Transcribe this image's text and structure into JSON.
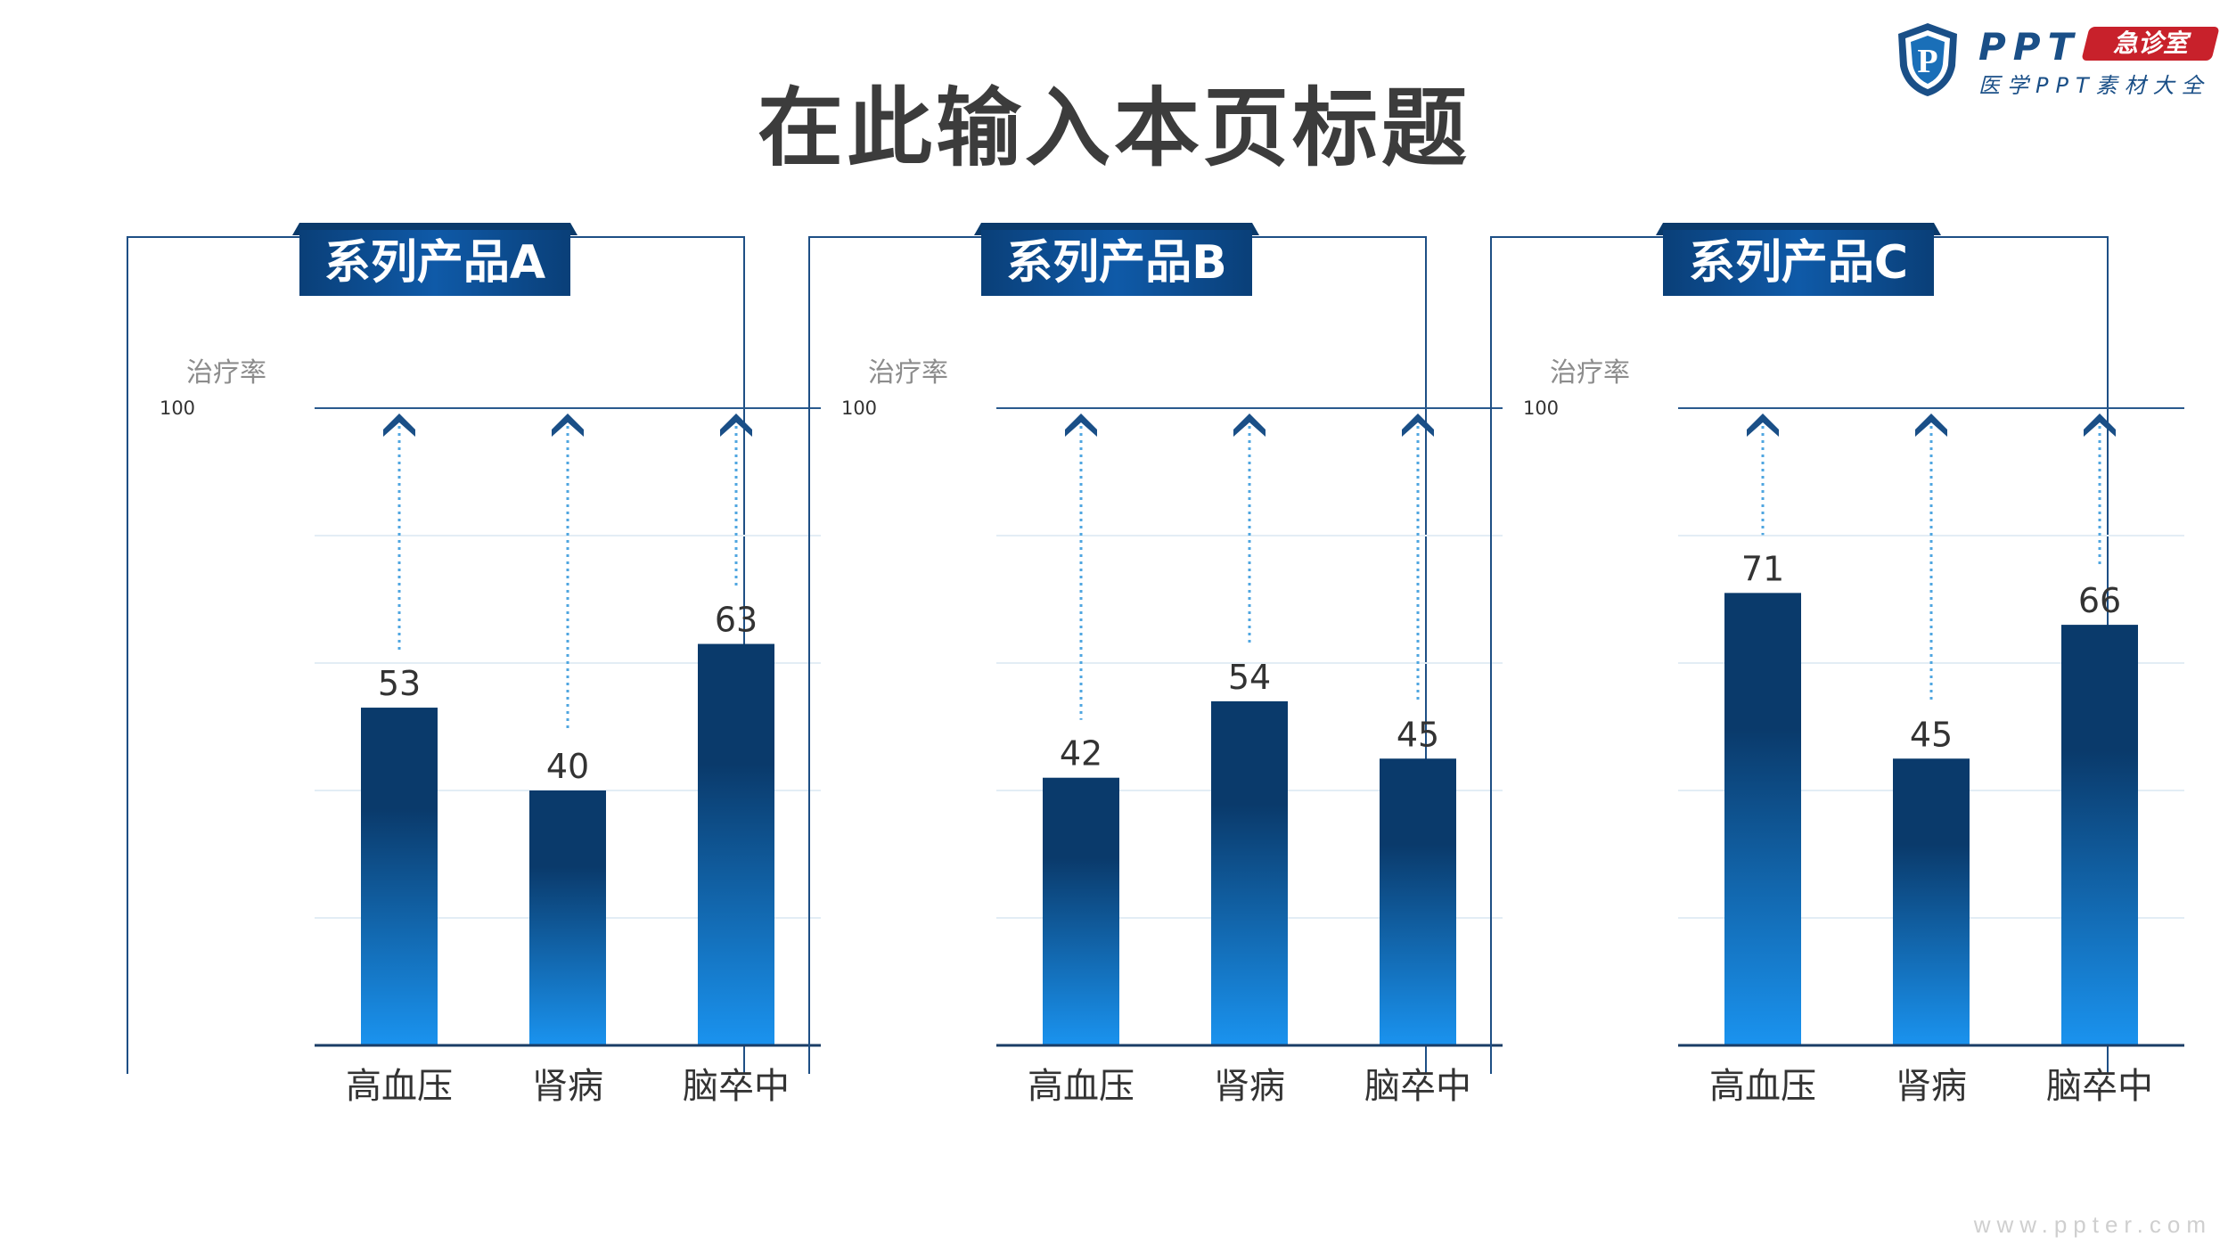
{
  "page": {
    "title": "在此输入本页标题",
    "watermark": "www.ppter.com"
  },
  "logo": {
    "mark_letter": "P",
    "name": "PPT",
    "badge": "急诊室",
    "subtitle": "医学PPT素材大全"
  },
  "colors": {
    "bar_top": "#0a3a6b",
    "bar_bottom": "#1a93ef",
    "tab": "#0d4d8f",
    "frame": "#1e4f85",
    "arrow": "#1a4f87",
    "leader": "#4fa6e0"
  },
  "chart_data": [
    {
      "type": "bar",
      "title": "系列产品A",
      "ylabel": "治疗率",
      "yticks": [
        100
      ],
      "ylim": [
        0,
        100
      ],
      "grid": true,
      "categories": [
        "高血压",
        "肾病",
        "脑卒中"
      ],
      "values": [
        53,
        40,
        63
      ]
    },
    {
      "type": "bar",
      "title": "系列产品B",
      "ylabel": "治疗率",
      "yticks": [
        100
      ],
      "ylim": [
        0,
        100
      ],
      "grid": true,
      "categories": [
        "高血压",
        "肾病",
        "脑卒中"
      ],
      "values": [
        42,
        54,
        45
      ]
    },
    {
      "type": "bar",
      "title": "系列产品C",
      "ylabel": "治疗率",
      "yticks": [
        100
      ],
      "ylim": [
        0,
        100
      ],
      "grid": true,
      "categories": [
        "高血压",
        "肾病",
        "脑卒中"
      ],
      "values": [
        71,
        45,
        66
      ]
    }
  ]
}
